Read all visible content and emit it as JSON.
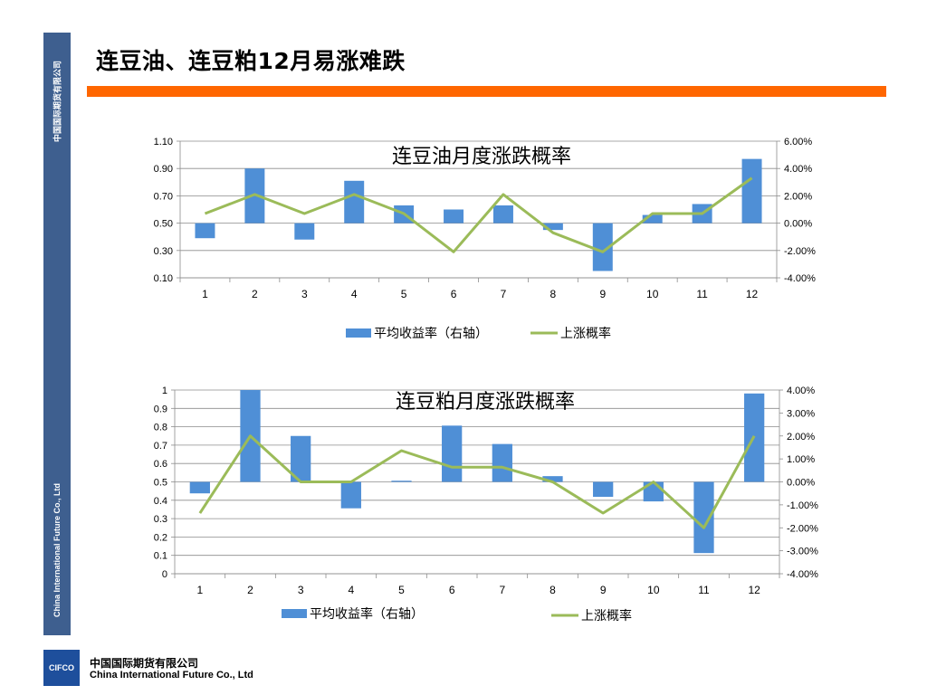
{
  "page": {
    "title": "连豆油、连豆粕12月易涨难跌",
    "sidebar_cn": "中国国际期货有限公司",
    "sidebar_en": "China International Future Co., Ltd",
    "footer_logo": "CIFCO",
    "footer_cn": "中国国际期货有限公司",
    "footer_en": "China International Future Co., Ltd"
  },
  "colors": {
    "accent": "#ff6600",
    "sidebar": "#3e5f8f",
    "bar": "#4f8fd6",
    "line": "#9bbb59"
  },
  "chart_data": [
    {
      "type": "bar",
      "title": "连豆油月度涨跌概率",
      "categories": [
        "1",
        "2",
        "3",
        "4",
        "5",
        "6",
        "7",
        "8",
        "9",
        "10",
        "11",
        "12"
      ],
      "left_axis": {
        "ylim": [
          0.1,
          1.1
        ],
        "ticks": [
          "0.10",
          "0.30",
          "0.50",
          "0.70",
          "0.90",
          "1.10"
        ]
      },
      "right_axis": {
        "ylim": [
          -4,
          6
        ],
        "ticks": [
          "-4.00%",
          "-2.00%",
          "0.00%",
          "2.00%",
          "4.00%",
          "6.00%"
        ]
      },
      "series": [
        {
          "name": "平均收益率（右轴）",
          "kind": "bar",
          "axis": "right",
          "values": [
            -1.1,
            4.0,
            -1.2,
            3.1,
            1.3,
            1.0,
            1.3,
            -0.5,
            -3.5,
            0.6,
            1.4,
            4.7
          ]
        },
        {
          "name": "上涨概率",
          "kind": "line",
          "axis": "left",
          "values": [
            0.57,
            0.71,
            0.57,
            0.71,
            0.57,
            0.29,
            0.71,
            0.43,
            0.29,
            0.57,
            0.57,
            0.83
          ]
        }
      ],
      "legend": "bottom"
    },
    {
      "type": "bar",
      "title": "连豆粕月度涨跌概率",
      "categories": [
        "1",
        "2",
        "3",
        "4",
        "5",
        "6",
        "7",
        "8",
        "9",
        "10",
        "11",
        "12"
      ],
      "left_axis": {
        "ylim": [
          0,
          1
        ],
        "ticks": [
          "0",
          "0.1",
          "0.2",
          "0.3",
          "0.4",
          "0.5",
          "0.6",
          "0.7",
          "0.8",
          "0.9",
          "1"
        ]
      },
      "right_axis": {
        "ylim": [
          -4,
          4
        ],
        "ticks": [
          "-4.00%",
          "-3.00%",
          "-2.00%",
          "-1.00%",
          "0.00%",
          "1.00%",
          "2.00%",
          "3.00%",
          "4.00%"
        ]
      },
      "series": [
        {
          "name": "平均收益率（右轴）",
          "kind": "bar",
          "axis": "right",
          "values": [
            -0.5,
            4.0,
            2.0,
            -1.15,
            0.05,
            2.45,
            1.65,
            0.25,
            -0.65,
            -0.85,
            -3.1,
            3.85
          ]
        },
        {
          "name": "上涨概率",
          "kind": "line",
          "axis": "left",
          "values": [
            0.33,
            0.75,
            0.5,
            0.5,
            0.67,
            0.58,
            0.58,
            0.5,
            0.33,
            0.5,
            0.25,
            0.75
          ]
        }
      ],
      "legend": "bottom"
    }
  ]
}
